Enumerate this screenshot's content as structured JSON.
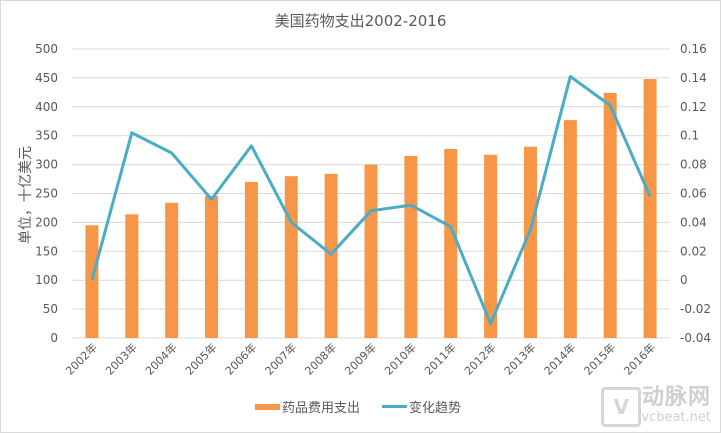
{
  "chart_data": {
    "type": "bar+line",
    "title": "美国药物支出2002-2016",
    "categories": [
      "2002年",
      "2003年",
      "2004年",
      "2005年",
      "2006年",
      "2007年",
      "2008年",
      "2009年",
      "2010年",
      "2011年",
      "2012年",
      "2013年",
      "2014年",
      "2015年",
      "2016年"
    ],
    "series": [
      {
        "name": "药品费用支出",
        "type": "bar",
        "axis": "left",
        "color": "#F79646",
        "values": [
          195,
          214,
          234,
          246,
          270,
          280,
          284,
          300,
          315,
          327,
          317,
          331,
          377,
          424,
          448
        ]
      },
      {
        "name": "变化趋势",
        "type": "line",
        "axis": "right",
        "color": "#4BACC6",
        "values": [
          0.0,
          0.102,
          0.088,
          0.056,
          0.093,
          0.04,
          0.018,
          0.048,
          0.052,
          0.037,
          -0.03,
          0.035,
          0.141,
          0.121,
          0.058
        ]
      }
    ],
    "ylabel": "单位，十亿美元",
    "ylim": [
      0,
      500
    ],
    "yticks": [
      0,
      50,
      100,
      150,
      200,
      250,
      300,
      350,
      400,
      450,
      500
    ],
    "y2lim": [
      -0.04,
      0.16
    ],
    "y2ticks": [
      "-0.04",
      "-0.02",
      "0",
      "0.02",
      "0.04",
      "0.06",
      "0.08",
      "0.1",
      "0.12",
      "0.14",
      "0.16"
    ],
    "grid": true,
    "legend_position": "bottom"
  },
  "legend": {
    "bar_label": "药品费用支出",
    "line_label": "变化趋势"
  },
  "watermark": {
    "cn": "动脉网",
    "en": "vcbeat.net"
  }
}
